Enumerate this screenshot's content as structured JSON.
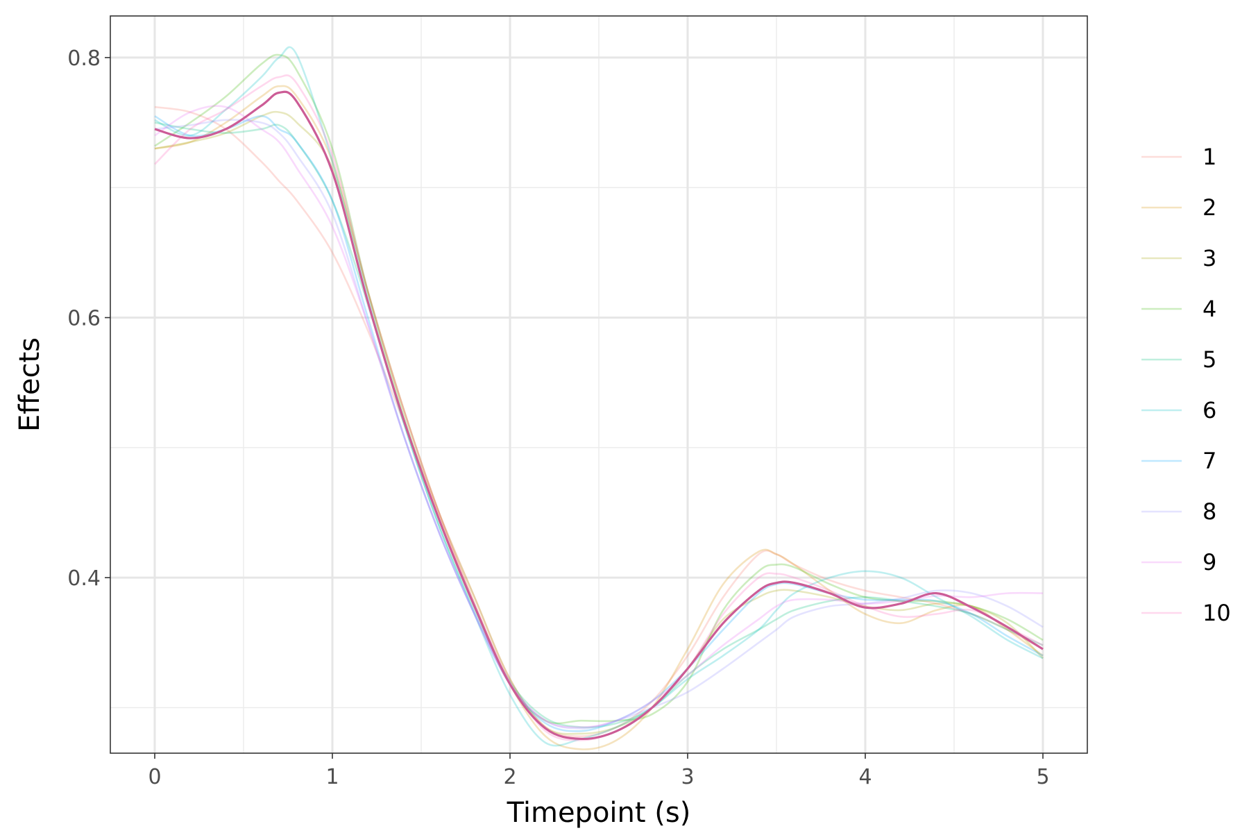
{
  "chart_data": {
    "type": "line",
    "title": "",
    "xlabel": "Timepoint (s)",
    "ylabel": "Effects",
    "xlim": [
      -0.25,
      5.25
    ],
    "ylim": [
      0.265,
      0.832
    ],
    "x_ticks": [
      0,
      1,
      2,
      3,
      4,
      5
    ],
    "x_tick_labels": [
      "0",
      "1",
      "2",
      "3",
      "4",
      "5"
    ],
    "x_minor_ticks": [
      0.5,
      1.5,
      2.5,
      3.5,
      4.5
    ],
    "y_ticks": [
      0.4,
      0.6,
      0.8
    ],
    "y_tick_labels": [
      "0.4",
      "0.6",
      "0.8"
    ],
    "y_minor_ticks": [
      0.3,
      0.5,
      0.7
    ],
    "grid": true,
    "legend_position": "right",
    "series_alpha": 0.25,
    "x": [
      0,
      0.2,
      0.4,
      0.6,
      0.7,
      0.8,
      1.0,
      1.2,
      1.4,
      1.6,
      1.8,
      2.0,
      2.2,
      2.4,
      2.6,
      2.8,
      3.0,
      3.2,
      3.4,
      3.5,
      3.6,
      3.8,
      4.0,
      4.2,
      4.4,
      4.6,
      4.8,
      5.0
    ],
    "series": [
      {
        "name": "1",
        "color": "#F8766D",
        "values": [
          0.762,
          0.758,
          0.745,
          0.72,
          0.705,
          0.69,
          0.65,
          0.59,
          0.52,
          0.45,
          0.385,
          0.322,
          0.285,
          0.278,
          0.285,
          0.305,
          0.34,
          0.385,
          0.418,
          0.418,
          0.41,
          0.398,
          0.39,
          0.385,
          0.38,
          0.372,
          0.36,
          0.345
        ]
      },
      {
        "name": "2",
        "color": "#D89000",
        "values": [
          0.73,
          0.735,
          0.75,
          0.77,
          0.778,
          0.77,
          0.72,
          0.62,
          0.53,
          0.45,
          0.38,
          0.318,
          0.278,
          0.268,
          0.275,
          0.3,
          0.345,
          0.395,
          0.42,
          0.418,
          0.41,
          0.39,
          0.372,
          0.365,
          0.375,
          0.378,
          0.36,
          0.34
        ]
      },
      {
        "name": "3",
        "color": "#A3A500",
        "values": [
          0.73,
          0.735,
          0.742,
          0.755,
          0.758,
          0.75,
          0.715,
          0.62,
          0.53,
          0.45,
          0.385,
          0.322,
          0.285,
          0.28,
          0.285,
          0.3,
          0.33,
          0.368,
          0.385,
          0.39,
          0.39,
          0.385,
          0.378,
          0.375,
          0.38,
          0.378,
          0.365,
          0.338
        ]
      },
      {
        "name": "4",
        "color": "#39B600",
        "values": [
          0.732,
          0.75,
          0.77,
          0.795,
          0.802,
          0.79,
          0.73,
          0.62,
          0.525,
          0.445,
          0.378,
          0.318,
          0.29,
          0.29,
          0.29,
          0.295,
          0.32,
          0.375,
          0.405,
          0.41,
          0.408,
          0.395,
          0.385,
          0.382,
          0.382,
          0.378,
          0.368,
          0.352
        ]
      },
      {
        "name": "5",
        "color": "#00BF7D",
        "values": [
          0.75,
          0.745,
          0.742,
          0.745,
          0.748,
          0.735,
          0.69,
          0.61,
          0.52,
          0.44,
          0.375,
          0.32,
          0.292,
          0.285,
          0.288,
          0.3,
          0.325,
          0.345,
          0.36,
          0.368,
          0.375,
          0.382,
          0.385,
          0.382,
          0.378,
          0.372,
          0.36,
          0.348
        ]
      },
      {
        "name": "6",
        "color": "#00BFC4",
        "values": [
          0.752,
          0.74,
          0.76,
          0.785,
          0.8,
          0.802,
          0.72,
          0.615,
          0.52,
          0.44,
          0.372,
          0.31,
          0.273,
          0.276,
          0.285,
          0.3,
          0.322,
          0.34,
          0.36,
          0.375,
          0.388,
          0.4,
          0.405,
          0.4,
          0.385,
          0.37,
          0.352,
          0.338
        ]
      },
      {
        "name": "7",
        "color": "#00A5FF",
        "values": [
          0.755,
          0.74,
          0.745,
          0.755,
          0.745,
          0.735,
          0.69,
          0.6,
          0.51,
          0.435,
          0.372,
          0.318,
          0.288,
          0.282,
          0.29,
          0.305,
          0.33,
          0.36,
          0.388,
          0.395,
          0.395,
          0.388,
          0.383,
          0.383,
          0.382,
          0.372,
          0.355,
          0.34
        ]
      },
      {
        "name": "8",
        "color": "#9590FF",
        "values": [
          0.745,
          0.748,
          0.752,
          0.75,
          0.742,
          0.725,
          0.68,
          0.595,
          0.51,
          0.435,
          0.372,
          0.318,
          0.29,
          0.284,
          0.29,
          0.3,
          0.312,
          0.33,
          0.35,
          0.36,
          0.37,
          0.378,
          0.38,
          0.384,
          0.39,
          0.388,
          0.378,
          0.362
        ]
      },
      {
        "name": "9",
        "color": "#E76BF3",
        "values": [
          0.74,
          0.758,
          0.762,
          0.745,
          0.735,
          0.715,
          0.67,
          0.595,
          0.51,
          0.435,
          0.372,
          0.318,
          0.29,
          0.285,
          0.29,
          0.305,
          0.325,
          0.348,
          0.368,
          0.378,
          0.383,
          0.383,
          0.38,
          0.382,
          0.386,
          0.385,
          0.388,
          0.388
        ]
      },
      {
        "name": "10",
        "color": "#FF62BC",
        "values": [
          0.718,
          0.745,
          0.76,
          0.778,
          0.785,
          0.78,
          0.725,
          0.62,
          0.53,
          0.45,
          0.38,
          0.32,
          0.282,
          0.275,
          0.282,
          0.3,
          0.33,
          0.372,
          0.4,
          0.403,
          0.4,
          0.39,
          0.378,
          0.37,
          0.372,
          0.375,
          0.362,
          0.348
        ]
      }
    ],
    "summary_line": {
      "color": "#CC5C96",
      "values": [
        0.745,
        0.738,
        0.745,
        0.763,
        0.773,
        0.766,
        0.712,
        0.612,
        0.522,
        0.445,
        0.378,
        0.318,
        0.284,
        0.276,
        0.282,
        0.3,
        0.33,
        0.365,
        0.39,
        0.396,
        0.396,
        0.388,
        0.377,
        0.38,
        0.388,
        0.377,
        0.362,
        0.345
      ]
    }
  }
}
